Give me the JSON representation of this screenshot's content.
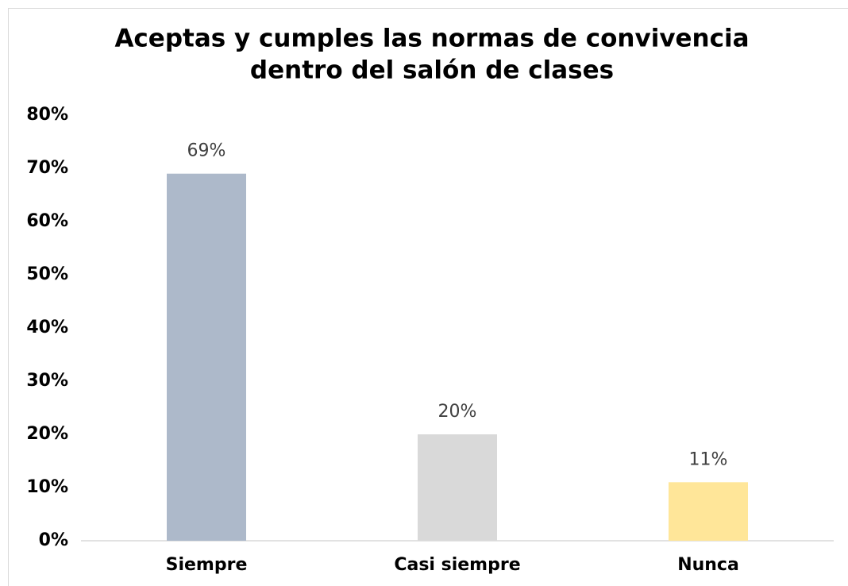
{
  "chart_data": {
    "type": "bar",
    "title": [
      "Aceptas y cumples las normas de convivencia",
      "dentro del salón de clases"
    ],
    "categories": [
      "Siempre",
      "Casi siempre",
      "Nunca"
    ],
    "values": [
      69,
      20,
      11
    ],
    "value_labels": [
      "69%",
      "20%",
      "11%"
    ],
    "colors": [
      "#adb9ca",
      "#d9d9d9",
      "#ffe699"
    ],
    "ylim": [
      0,
      80
    ],
    "yticks": [
      {
        "value": 0,
        "label": "0%"
      },
      {
        "value": 10,
        "label": "10%"
      },
      {
        "value": 20,
        "label": "20%"
      },
      {
        "value": 30,
        "label": "30%"
      },
      {
        "value": 40,
        "label": "40%"
      },
      {
        "value": 50,
        "label": "50%"
      },
      {
        "value": 60,
        "label": "60%"
      },
      {
        "value": 70,
        "label": "70%"
      },
      {
        "value": 80,
        "label": "80%"
      }
    ],
    "grid": false
  }
}
